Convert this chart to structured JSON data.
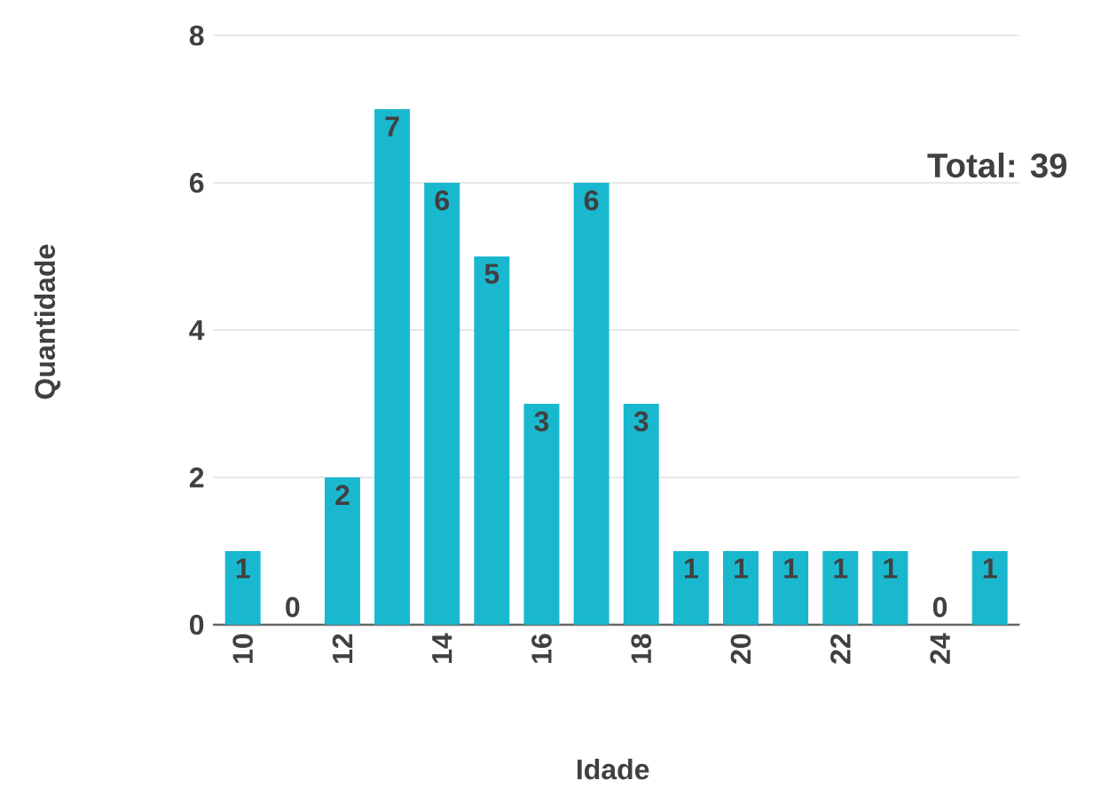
{
  "chart_data": {
    "type": "bar",
    "xlabel": "Idade",
    "ylabel": "Quantidade",
    "categories": [
      "10",
      null,
      "12",
      null,
      "14",
      null,
      "16",
      null,
      "18",
      null,
      "20",
      null,
      "22",
      null,
      "24",
      null
    ],
    "values": [
      1,
      0,
      2,
      7,
      6,
      5,
      3,
      6,
      3,
      1,
      1,
      1,
      1,
      1,
      0,
      1
    ],
    "color": "#1ab8cf",
    "ylim": [
      0,
      8
    ],
    "yticks": [
      0,
      2,
      4,
      6,
      8
    ],
    "grid": "y",
    "data_labels": true,
    "annotations": [
      "Total: 39"
    ]
  }
}
